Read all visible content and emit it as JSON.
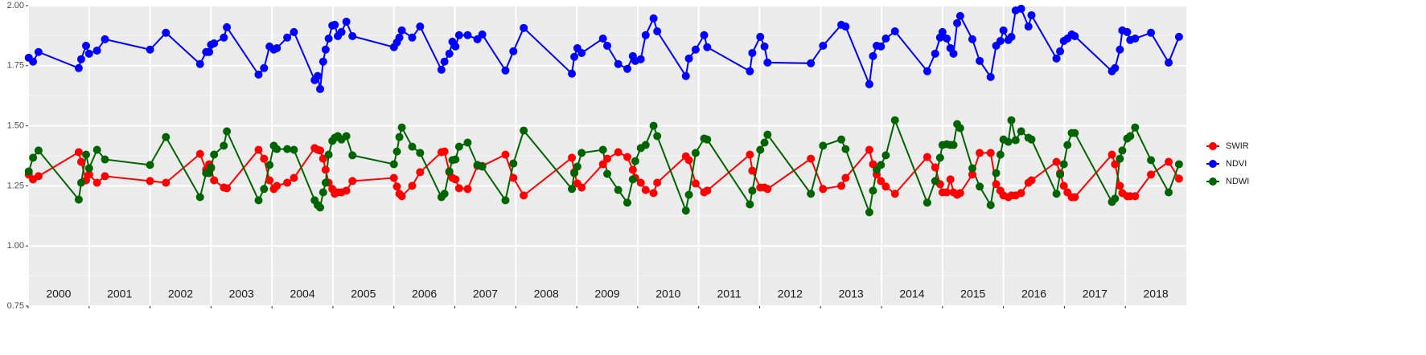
{
  "chart_data": {
    "type": "line",
    "xlim": [
      2000,
      2019
    ],
    "ylim": [
      0.75,
      2.0
    ],
    "yticks": [
      {
        "value": 0.75,
        "label": "0.75"
      },
      {
        "value": 1.0,
        "label": "1.00"
      },
      {
        "value": 1.25,
        "label": "1.25"
      },
      {
        "value": 1.5,
        "label": "1.50"
      },
      {
        "value": 1.75,
        "label": "1.75"
      },
      {
        "value": 2.0,
        "label": "2.00"
      }
    ],
    "xticks": [
      2000,
      2001,
      2002,
      2003,
      2004,
      2005,
      2006,
      2007,
      2008,
      2009,
      2010,
      2011,
      2012,
      2013,
      2014,
      2015,
      2016,
      2017,
      2018
    ],
    "grid": true,
    "legend": "right",
    "x": [
      2000.01,
      2000.08,
      2000.17,
      2000.83,
      2000.87,
      2000.95,
      2001.0,
      2001.13,
      2001.26,
      2002.0,
      2002.26,
      2002.82,
      2002.92,
      2002.97,
      2003.0,
      2003.05,
      2003.21,
      2003.26,
      2003.78,
      2003.87,
      2003.96,
      2004.03,
      2004.08,
      2004.25,
      2004.36,
      2004.7,
      2004.75,
      2004.79,
      2004.84,
      2004.88,
      2004.93,
      2004.99,
      2005.03,
      2005.08,
      2005.14,
      2005.22,
      2005.32,
      2006.0,
      2006.05,
      2006.09,
      2006.13,
      2006.3,
      2006.43,
      2006.78,
      2006.83,
      2006.91,
      2006.96,
      2007.01,
      2007.07,
      2007.21,
      2007.37,
      2007.45,
      2007.83,
      2007.96,
      2008.13,
      2008.92,
      2008.96,
      2009.01,
      2009.08,
      2009.43,
      2009.5,
      2009.68,
      2009.83,
      2009.92,
      2009.96,
      2010.05,
      2010.13,
      2010.26,
      2010.32,
      2010.79,
      2010.84,
      2010.95,
      2011.09,
      2011.14,
      2011.84,
      2011.88,
      2012.01,
      2012.08,
      2012.13,
      2012.84,
      2013.04,
      2013.34,
      2013.41,
      2013.8,
      2013.86,
      2013.92,
      2013.99,
      2014.07,
      2014.22,
      2014.75,
      2014.88,
      2014.96,
      2015.0,
      2015.07,
      2015.13,
      2015.18,
      2015.24,
      2015.29,
      2015.49,
      2015.61,
      2015.79,
      2015.88,
      2015.95,
      2016.0,
      2016.08,
      2016.13,
      2016.2,
      2016.29,
      2016.41,
      2016.46,
      2016.87,
      2016.93,
      2016.99,
      2017.05,
      2017.12,
      2017.17,
      2017.78,
      2017.83,
      2017.91,
      2017.95,
      2018.03,
      2018.08,
      2018.16,
      2018.42,
      2018.71,
      2018.88
    ],
    "series": [
      {
        "name": "SWIR",
        "color": "#ff0000",
        "values": [
          1.297,
          1.277,
          1.29,
          1.39,
          1.35,
          1.273,
          1.297,
          1.263,
          1.29,
          1.27,
          1.263,
          1.383,
          1.317,
          1.34,
          1.323,
          1.273,
          1.243,
          1.24,
          1.4,
          1.363,
          1.273,
          1.237,
          1.25,
          1.263,
          1.283,
          1.407,
          1.4,
          1.397,
          1.363,
          1.317,
          1.263,
          1.237,
          1.217,
          1.223,
          1.223,
          1.23,
          1.27,
          1.283,
          1.247,
          1.217,
          1.207,
          1.25,
          1.307,
          1.39,
          1.393,
          1.307,
          1.283,
          1.277,
          1.24,
          1.237,
          1.333,
          1.333,
          1.38,
          1.283,
          1.21,
          1.367,
          1.307,
          1.26,
          1.243,
          1.34,
          1.363,
          1.39,
          1.37,
          1.317,
          1.283,
          1.263,
          1.233,
          1.22,
          1.263,
          1.373,
          1.357,
          1.26,
          1.223,
          1.23,
          1.38,
          1.313,
          1.243,
          1.243,
          1.237,
          1.363,
          1.237,
          1.25,
          1.283,
          1.4,
          1.34,
          1.297,
          1.27,
          1.247,
          1.217,
          1.37,
          1.327,
          1.257,
          1.223,
          1.223,
          1.277,
          1.223,
          1.213,
          1.22,
          1.297,
          1.387,
          1.387,
          1.257,
          1.23,
          1.21,
          1.203,
          1.21,
          1.21,
          1.22,
          1.263,
          1.273,
          1.35,
          1.303,
          1.25,
          1.223,
          1.203,
          1.203,
          1.38,
          1.34,
          1.25,
          1.22,
          1.207,
          1.207,
          1.207,
          1.297,
          1.35,
          1.28
        ]
      },
      {
        "name": "NDVI",
        "color": "#0000ff",
        "values": [
          1.783,
          1.767,
          1.807,
          1.74,
          1.777,
          1.833,
          1.8,
          1.813,
          1.86,
          1.817,
          1.887,
          1.757,
          1.807,
          1.807,
          1.837,
          1.843,
          1.867,
          1.91,
          1.713,
          1.74,
          1.83,
          1.817,
          1.823,
          1.867,
          1.89,
          1.69,
          1.707,
          1.653,
          1.767,
          1.817,
          1.863,
          1.917,
          1.92,
          1.873,
          1.89,
          1.933,
          1.873,
          1.827,
          1.847,
          1.867,
          1.897,
          1.867,
          1.913,
          1.733,
          1.767,
          1.8,
          1.85,
          1.83,
          1.877,
          1.877,
          1.86,
          1.88,
          1.73,
          1.81,
          1.907,
          1.717,
          1.787,
          1.823,
          1.803,
          1.863,
          1.833,
          1.757,
          1.737,
          1.79,
          1.77,
          1.777,
          1.877,
          1.947,
          1.893,
          1.707,
          1.78,
          1.817,
          1.877,
          1.827,
          1.727,
          1.803,
          1.87,
          1.83,
          1.763,
          1.76,
          1.833,
          1.92,
          1.913,
          1.673,
          1.79,
          1.833,
          1.83,
          1.863,
          1.893,
          1.727,
          1.8,
          1.867,
          1.89,
          1.863,
          1.823,
          1.8,
          1.927,
          1.957,
          1.86,
          1.77,
          1.703,
          1.833,
          1.853,
          1.897,
          1.857,
          1.87,
          1.98,
          1.987,
          1.913,
          1.96,
          1.78,
          1.81,
          1.853,
          1.863,
          1.88,
          1.873,
          1.727,
          1.74,
          1.817,
          1.897,
          1.89,
          1.857,
          1.863,
          1.887,
          1.763,
          1.87
        ]
      },
      {
        "name": "NDWI",
        "color": "#006400",
        "values": [
          1.31,
          1.367,
          1.397,
          1.193,
          1.263,
          1.38,
          1.323,
          1.4,
          1.36,
          1.337,
          1.453,
          1.203,
          1.303,
          1.303,
          1.327,
          1.38,
          1.417,
          1.477,
          1.19,
          1.237,
          1.337,
          1.417,
          1.403,
          1.403,
          1.4,
          1.19,
          1.17,
          1.16,
          1.223,
          1.263,
          1.38,
          1.437,
          1.45,
          1.457,
          1.443,
          1.457,
          1.377,
          1.34,
          1.393,
          1.453,
          1.493,
          1.413,
          1.387,
          1.203,
          1.217,
          1.31,
          1.357,
          1.36,
          1.413,
          1.43,
          1.337,
          1.33,
          1.19,
          1.343,
          1.48,
          1.237,
          1.303,
          1.33,
          1.387,
          1.4,
          1.3,
          1.233,
          1.18,
          1.277,
          1.353,
          1.407,
          1.42,
          1.5,
          1.457,
          1.147,
          1.213,
          1.387,
          1.447,
          1.443,
          1.173,
          1.23,
          1.4,
          1.43,
          1.463,
          1.217,
          1.417,
          1.443,
          1.403,
          1.14,
          1.23,
          1.317,
          1.337,
          1.377,
          1.523,
          1.18,
          1.27,
          1.367,
          1.42,
          1.423,
          1.42,
          1.42,
          1.507,
          1.49,
          1.323,
          1.247,
          1.17,
          1.303,
          1.38,
          1.443,
          1.433,
          1.523,
          1.44,
          1.477,
          1.45,
          1.443,
          1.217,
          1.297,
          1.34,
          1.42,
          1.47,
          1.47,
          1.183,
          1.197,
          1.363,
          1.397,
          1.447,
          1.457,
          1.493,
          1.357,
          1.223,
          1.34
        ]
      }
    ]
  }
}
